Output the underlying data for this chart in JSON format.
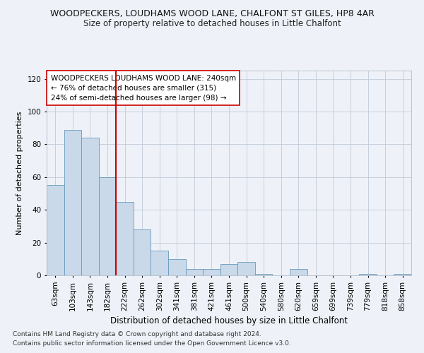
{
  "title1": "WOODPECKERS, LOUDHAMS WOOD LANE, CHALFONT ST GILES, HP8 4AR",
  "title2": "Size of property relative to detached houses in Little Chalfont",
  "xlabel": "Distribution of detached houses by size in Little Chalfont",
  "ylabel": "Number of detached properties",
  "categories": [
    "63sqm",
    "103sqm",
    "143sqm",
    "182sqm",
    "222sqm",
    "262sqm",
    "302sqm",
    "341sqm",
    "381sqm",
    "421sqm",
    "461sqm",
    "500sqm",
    "540sqm",
    "580sqm",
    "620sqm",
    "659sqm",
    "699sqm",
    "739sqm",
    "779sqm",
    "818sqm",
    "858sqm"
  ],
  "values": [
    55,
    89,
    84,
    60,
    45,
    28,
    15,
    10,
    4,
    4,
    7,
    8,
    1,
    0,
    4,
    0,
    0,
    0,
    1,
    0,
    1
  ],
  "bar_color": "#c9d9e9",
  "bar_edge_color": "#6699bb",
  "vline_index": 4,
  "vline_color": "#cc0000",
  "annotation_text": "WOODPECKERS LOUDHAMS WOOD LANE: 240sqm\n← 76% of detached houses are smaller (315)\n24% of semi-detached houses are larger (98) →",
  "annotation_box_color": "#ffffff",
  "annotation_box_edge_color": "#cc0000",
  "ylim": [
    0,
    125
  ],
  "yticks": [
    0,
    20,
    40,
    60,
    80,
    100,
    120
  ],
  "footnote1": "Contains HM Land Registry data © Crown copyright and database right 2024.",
  "footnote2": "Contains public sector information licensed under the Open Government Licence v3.0.",
  "background_color": "#eef2f8",
  "title1_fontsize": 9,
  "title2_fontsize": 8.5,
  "xlabel_fontsize": 8.5,
  "ylabel_fontsize": 8,
  "tick_fontsize": 7.5,
  "annotation_fontsize": 7.5,
  "footnote_fontsize": 6.5
}
